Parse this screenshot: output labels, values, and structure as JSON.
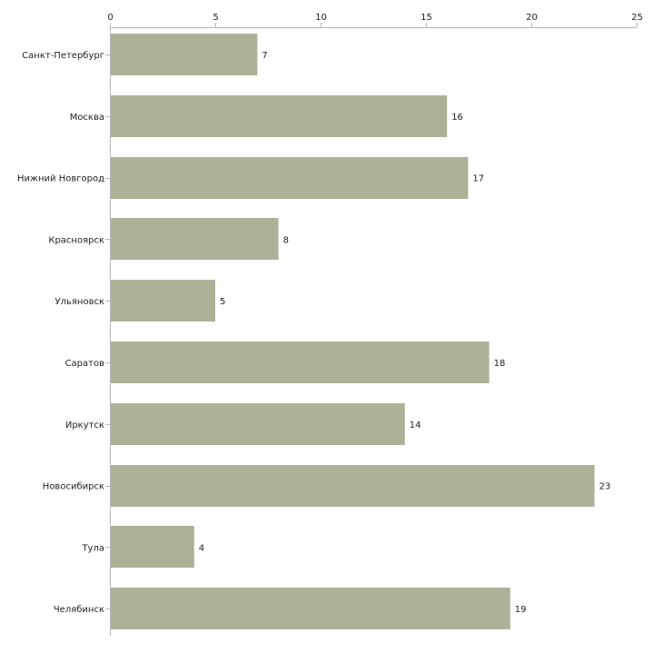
{
  "chart_data": {
    "type": "bar",
    "orientation": "horizontal",
    "title": "",
    "xlabel": "",
    "ylabel": "",
    "xlim": [
      0,
      25
    ],
    "ticks": [
      0,
      5,
      10,
      15,
      20,
      25
    ],
    "tick_labels": [
      "0",
      "5",
      "10",
      "15",
      "20",
      "25"
    ],
    "grid": false,
    "axis_position": "top",
    "categories": [
      "Санкт-Петербург",
      "Москва",
      "Нижний Новгород",
      "Красноярск",
      "Ульяновск",
      "Саратов",
      "Иркутск",
      "Новосибирск",
      "Тула",
      "Челябинск"
    ],
    "values": [
      7,
      16,
      17,
      8,
      5,
      18,
      14,
      23,
      4,
      19
    ],
    "data_labels": [
      "7",
      "16",
      "17",
      "8",
      "5",
      "18",
      "14",
      "23",
      "4",
      "19"
    ],
    "colors": {
      "bar": "#acb298",
      "axis": "#b8b8b8",
      "text": "#222222"
    }
  }
}
